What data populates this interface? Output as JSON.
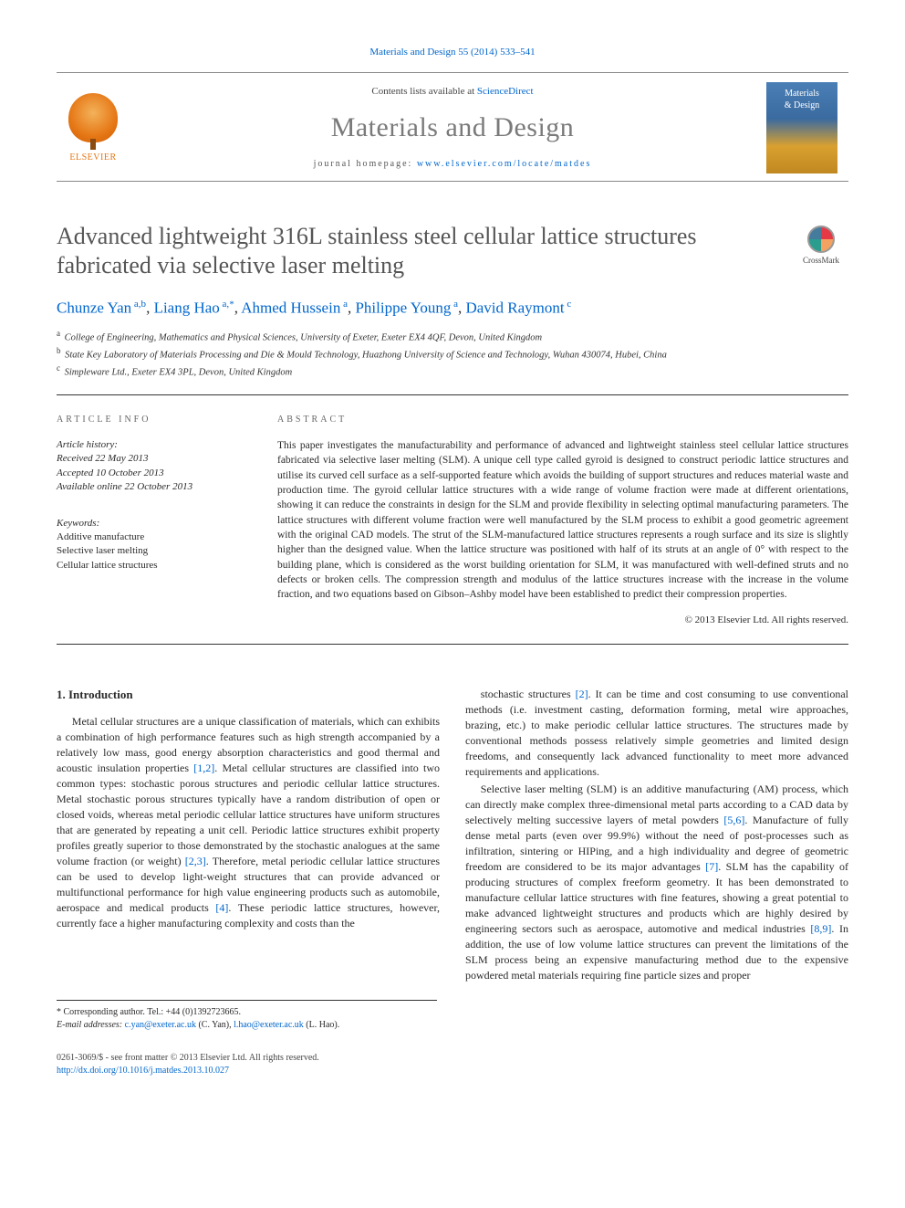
{
  "citation": {
    "journal_link": "Materials and Design 55 (2014) 533–541"
  },
  "masthead": {
    "contents_prefix": "Contents lists available at ",
    "contents_link": "ScienceDirect",
    "journal_name": "Materials and Design",
    "homepage_prefix": "journal homepage: ",
    "homepage_url": "www.elsevier.com/locate/matdes",
    "publisher_logo_text": "ELSEVIER",
    "cover_line1": "Materials",
    "cover_line2": "& Design"
  },
  "title": "Advanced lightweight 316L stainless steel cellular lattice structures fabricated via selective laser melting",
  "crossmark_label": "CrossMark",
  "authors": [
    {
      "name": "Chunze Yan",
      "aff": "a,b",
      "corr": false
    },
    {
      "name": "Liang Hao",
      "aff": "a,",
      "corr": true
    },
    {
      "name": "Ahmed Hussein",
      "aff": "a",
      "corr": false
    },
    {
      "name": "Philippe Young",
      "aff": "a",
      "corr": false
    },
    {
      "name": "David Raymont",
      "aff": "c",
      "corr": false
    }
  ],
  "affiliations": [
    {
      "key": "a",
      "text": "College of Engineering, Mathematics and Physical Sciences, University of Exeter, Exeter EX4 4QF, Devon, United Kingdom"
    },
    {
      "key": "b",
      "text": "State Key Laboratory of Materials Processing and Die & Mould Technology, Huazhong University of Science and Technology, Wuhan 430074, Hubei, China"
    },
    {
      "key": "c",
      "text": "Simpleware Ltd., Exeter EX4 3PL, Devon, United Kingdom"
    }
  ],
  "article_info": {
    "label": "ARTICLE INFO",
    "history_head": "Article history:",
    "received": "Received 22 May 2013",
    "accepted": "Accepted 10 October 2013",
    "online": "Available online 22 October 2013",
    "keywords_head": "Keywords:",
    "keywords": [
      "Additive manufacture",
      "Selective laser melting",
      "Cellular lattice structures"
    ]
  },
  "abstract": {
    "label": "ABSTRACT",
    "text": "This paper investigates the manufacturability and performance of advanced and lightweight stainless steel cellular lattice structures fabricated via selective laser melting (SLM). A unique cell type called gyroid is designed to construct periodic lattice structures and utilise its curved cell surface as a self-supported feature which avoids the building of support structures and reduces material waste and production time. The gyroid cellular lattice structures with a wide range of volume fraction were made at different orientations, showing it can reduce the constraints in design for the SLM and provide flexibility in selecting optimal manufacturing parameters. The lattice structures with different volume fraction were well manufactured by the SLM process to exhibit a good geometric agreement with the original CAD models. The strut of the SLM-manufactured lattice structures represents a rough surface and its size is slightly higher than the designed value. When the lattice structure was positioned with half of its struts at an angle of 0° with respect to the building plane, which is considered as the worst building orientation for SLM, it was manufactured with well-defined struts and no defects or broken cells. The compression strength and modulus of the lattice structures increase with the increase in the volume fraction, and two equations based on Gibson–Ashby model have been established to predict their compression properties.",
    "copyright": "© 2013 Elsevier Ltd. All rights reserved."
  },
  "body": {
    "intro_heading": "1. Introduction",
    "col1_p1": "Metal cellular structures are a unique classification of materials, which can exhibits a combination of high performance features such as high strength accompanied by a relatively low mass, good energy absorption characteristics and good thermal and acoustic insulation properties [1,2]. Metal cellular structures are classified into two common types: stochastic porous structures and periodic cellular lattice structures. Metal stochastic porous structures typically have a random distribution of open or closed voids, whereas metal periodic cellular lattice structures have uniform structures that are generated by repeating a unit cell. Periodic lattice structures exhibit property profiles greatly superior to those demonstrated by the stochastic analogues at the same volume fraction (or weight) [2,3]. Therefore, metal periodic cellular lattice structures can be used to develop light-weight structures that can provide advanced or multifunctional performance for high value engineering products such as automobile, aerospace and medical products [4]. These periodic lattice structures, however, currently face a higher manufacturing complexity and costs than the",
    "col2_p1": "stochastic structures [2]. It can be time and cost consuming to use conventional methods (i.e. investment casting, deformation forming, metal wire approaches, brazing, etc.) to make periodic cellular lattice structures. The structures made by conventional methods possess relatively simple geometries and limited design freedoms, and consequently lack advanced functionality to meet more advanced requirements and applications.",
    "col2_p2": "Selective laser melting (SLM) is an additive manufacturing (AM) process, which can directly make complex three-dimensional metal parts according to a CAD data by selectively melting successive layers of metal powders [5,6]. Manufacture of fully dense metal parts (even over 99.9%) without the need of post-processes such as infiltration, sintering or HIPing, and a high individuality and degree of geometric freedom are considered to be its major advantages [7]. SLM has the capability of producing structures of complex freeform geometry. It has been demonstrated to manufacture cellular lattice structures with fine features, showing a great potential to make advanced lightweight structures and products which are highly desired by engineering sectors such as aerospace, automotive and medical industries [8,9]. In addition, the use of low volume lattice structures can prevent the limitations of the SLM process being an expensive manufacturing method due to the expensive powdered metal materials requiring fine particle sizes and proper"
  },
  "footnotes": {
    "corr": "* Corresponding author. Tel.: +44 (0)1392723665.",
    "email_label": "E-mail addresses:",
    "email1": "c.yan@exeter.ac.uk",
    "email1_who": "(C. Yan),",
    "email2": "l.hao@exeter.ac.uk",
    "email2_who": "(L. Hao)."
  },
  "footer": {
    "issn_line": "0261-3069/$ - see front matter © 2013 Elsevier Ltd. All rights reserved.",
    "doi": "http://dx.doi.org/10.1016/j.matdes.2013.10.027"
  },
  "colors": {
    "link": "#0066cc",
    "title_grey": "#555555",
    "label_grey": "#666666",
    "elsevier_orange": "#e67817"
  }
}
